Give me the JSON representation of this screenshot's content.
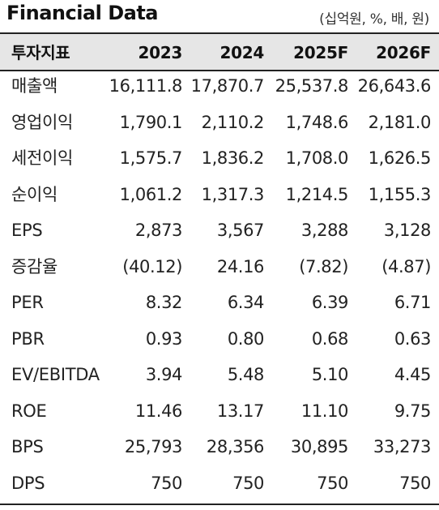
{
  "title": "Financial Data",
  "unit": "(십억원, %, 배, 원)",
  "table": {
    "headers": [
      "투자지표",
      "2023",
      "2024",
      "2025F",
      "2026F"
    ],
    "rows": [
      {
        "label": "매출액",
        "values": [
          "16,111.8",
          "17,870.7",
          "25,537.8",
          "26,643.6"
        ]
      },
      {
        "label": "영업이익",
        "values": [
          "1,790.1",
          "2,110.2",
          "1,748.6",
          "2,181.0"
        ]
      },
      {
        "label": "세전이익",
        "values": [
          "1,575.7",
          "1,836.2",
          "1,708.0",
          "1,626.5"
        ]
      },
      {
        "label": "순이익",
        "values": [
          "1,061.2",
          "1,317.3",
          "1,214.5",
          "1,155.3"
        ]
      },
      {
        "label": "EPS",
        "values": [
          "2,873",
          "3,567",
          "3,288",
          "3,128"
        ]
      },
      {
        "label": "증감율",
        "values": [
          "(40.12)",
          "24.16",
          "(7.82)",
          "(4.87)"
        ]
      },
      {
        "label": "PER",
        "values": [
          "8.32",
          "6.34",
          "6.39",
          "6.71"
        ]
      },
      {
        "label": "PBR",
        "values": [
          "0.93",
          "0.80",
          "0.68",
          "0.63"
        ]
      },
      {
        "label": "EV/EBITDA",
        "values": [
          "3.94",
          "5.48",
          "5.10",
          "4.45"
        ]
      },
      {
        "label": "ROE",
        "values": [
          "11.46",
          "13.17",
          "11.10",
          "9.75"
        ]
      },
      {
        "label": "BPS",
        "values": [
          "25,793",
          "28,356",
          "30,895",
          "33,273"
        ]
      },
      {
        "label": "DPS",
        "values": [
          "750",
          "750",
          "750",
          "750"
        ]
      }
    ]
  }
}
